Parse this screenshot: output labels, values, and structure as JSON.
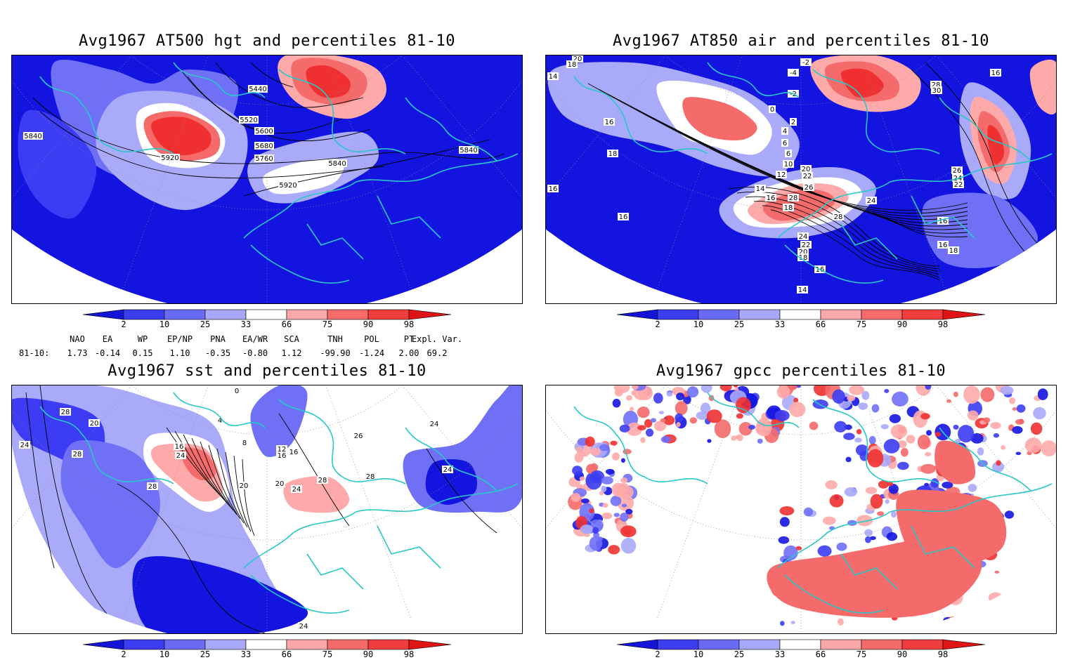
{
  "panels": [
    {
      "id": "hgt",
      "title": "Avg1967 AT500 hgt and percentiles 81-10",
      "contour_labels": [
        "5440",
        "5520",
        "5600",
        "5680",
        "5760",
        "5840",
        "5920",
        "5920",
        "5840",
        "5840"
      ]
    },
    {
      "id": "air",
      "title": "Avg1967 AT850 air and percentiles 81-10",
      "contour_labels": [
        "20",
        "18",
        "14",
        "16",
        "18",
        "16",
        "16",
        "-2",
        "-4",
        "-2",
        "0",
        "2",
        "4",
        "6",
        "6",
        "10",
        "12",
        "14",
        "16",
        "18",
        "20",
        "22",
        "26",
        "28",
        "28",
        "24",
        "24",
        "22",
        "20",
        "18",
        "16",
        "14",
        "18",
        "16",
        "26",
        "24",
        "22",
        "28",
        "30",
        "16",
        "16"
      ]
    },
    {
      "id": "sst",
      "title": "Avg1967 sst and percentiles 81-10",
      "contour_labels": [
        "28",
        "24",
        "28",
        "28",
        "20",
        "0",
        "4",
        "8",
        "16",
        "16",
        "24",
        "24",
        "28",
        "28",
        "24",
        "26",
        "20",
        "12",
        "16",
        "20",
        "24",
        "24"
      ]
    },
    {
      "id": "gpcc",
      "title": "Avg1967 gpcc percentiles 81-10",
      "contour_labels": []
    }
  ],
  "colorbar": {
    "tick_labels": [
      "2",
      "10",
      "25",
      "33",
      "66",
      "75",
      "90",
      "98"
    ],
    "colors": [
      "#1414d8",
      "#3c3cf0",
      "#6a6af5",
      "#a8a8fb",
      "#ffffff",
      "#fba8a8",
      "#f56a6a",
      "#f03c3c",
      "#e01414"
    ]
  },
  "indices": {
    "headers": [
      "NAO",
      "EA",
      "WP",
      "EP/NP",
      "PNA",
      "EA/WR",
      "SCA",
      "TNH",
      "POL",
      "PT",
      "Expl. Var."
    ],
    "row_label": "81-10:",
    "values": [
      "1.73",
      "-0.14",
      "0.15",
      "1.10",
      "-0.35",
      "-0.80",
      "1.12",
      "-99.90",
      "-1.24",
      "2.00",
      "69.2"
    ]
  }
}
